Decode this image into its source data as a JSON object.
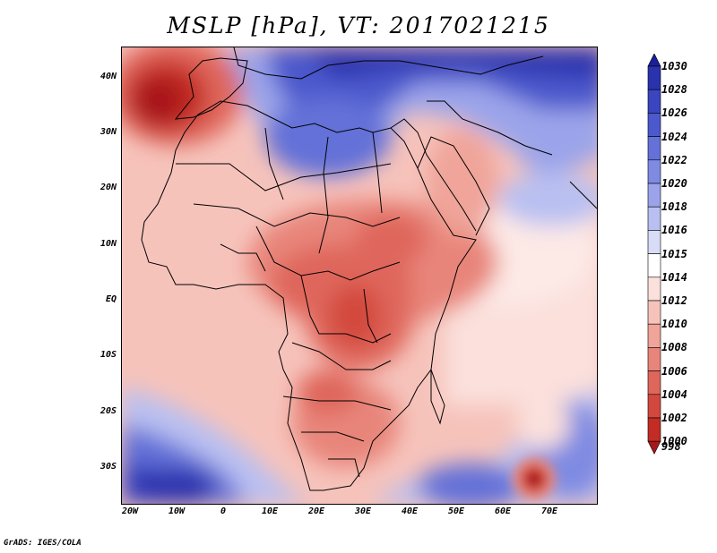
{
  "title": "MSLP [hPa], VT: 2017021215",
  "credit": "GrADS: IGES/COLA",
  "y_axis_labels": [
    "40N",
    "30N",
    "20N",
    "10N",
    "EQ",
    "10S",
    "20S",
    "30S"
  ],
  "x_axis_labels": [
    "20W",
    "10W",
    "0",
    "10E",
    "20E",
    "30E",
    "40E",
    "50E",
    "60E",
    "70E"
  ],
  "colorbar": {
    "labels": [
      "1030",
      "1028",
      "1026",
      "1024",
      "1022",
      "1020",
      "1018",
      "1016",
      "1015",
      "1014",
      "1012",
      "1010",
      "1008",
      "1006",
      "1004",
      "1002",
      "1000",
      "998"
    ],
    "colors": [
      "#1b1f9a",
      "#2a33ad",
      "#3a45bf",
      "#4c59cc",
      "#6471d8",
      "#7f8be2",
      "#9ba4ea",
      "#b9c0f1",
      "#d8dcf7",
      "#ffffff",
      "#fbe0dc",
      "#f6c3bb",
      "#f0a49a",
      "#e8857a",
      "#df665b",
      "#d3483e",
      "#c22c24",
      "#a8181a"
    ]
  },
  "colors": {
    "high": "#2a33ad",
    "low": "#a8181a",
    "neutral": "#ffffff"
  }
}
